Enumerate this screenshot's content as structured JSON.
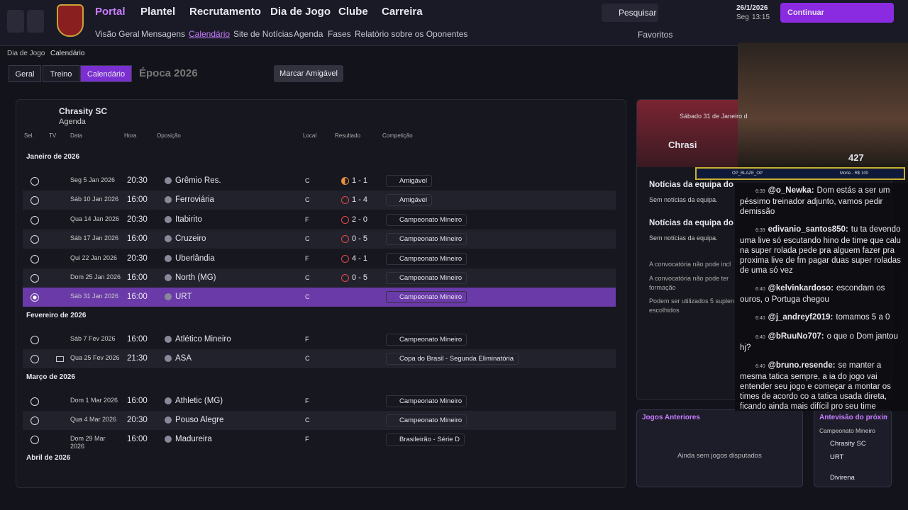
{
  "nav": {
    "tabs": [
      "Portal",
      "Plantel",
      "Recrutamento",
      "Dia de Jogo",
      "Clube",
      "Carreira"
    ],
    "subtabs": [
      "Visão Geral",
      "Mensagens",
      "Calendário",
      "Site de Notícias",
      "Agenda",
      "Fases",
      "Relatório sobre os Oponentes"
    ],
    "search": "Pesquisar",
    "date": "26/1/2026",
    "weekday": "Seg",
    "time": "13:15",
    "continue": "Continuar",
    "favorites": "Favoritos"
  },
  "breadcrumb": [
    "Dia de Jogo",
    "Calendário"
  ],
  "toolbar": {
    "buttons": [
      "Geral",
      "Treino",
      "Calendário"
    ],
    "season": "Época 2026",
    "friendly": "Marcar Amigável"
  },
  "club": {
    "name": "Chrasity SC",
    "subtitle": "Agenda"
  },
  "columns": [
    "Sel.",
    "TV",
    "Data",
    "Hora",
    "Oposição",
    "Local",
    "Resultado",
    "Competição"
  ],
  "groups": [
    {
      "month": "Janeiro de 2026",
      "matches": [
        {
          "date": "Seg 5 Jan 2026",
          "time": "20:30",
          "opponent": "Grêmio Res.",
          "venue": "C",
          "result": "1 - 1",
          "competition": "Amigável"
        },
        {
          "date": "Sáb 10 Jan 2026",
          "time": "16:00",
          "opponent": "Ferroviária",
          "venue": "C",
          "result": "1 - 4",
          "competition": "Amigável"
        },
        {
          "date": "Qua 14 Jan 2026",
          "time": "20:30",
          "opponent": "Itabirito",
          "venue": "F",
          "result": "2 - 0",
          "competition": "Campeonato Mineiro"
        },
        {
          "date": "Sáb 17 Jan 2026",
          "time": "16:00",
          "opponent": "Cruzeiro",
          "venue": "C",
          "result": "0 - 5",
          "competition": "Campeonato Mineiro"
        },
        {
          "date": "Qui 22 Jan 2026",
          "time": "20:30",
          "opponent": "Uberlândia",
          "venue": "F",
          "result": "4 - 1",
          "competition": "Campeonato Mineiro"
        },
        {
          "date": "Dom 25 Jan 2026",
          "time": "16:00",
          "opponent": "North (MG)",
          "venue": "C",
          "result": "0 - 5",
          "competition": "Campeonato Mineiro"
        },
        {
          "date": "Sáb 31 Jan 2026",
          "time": "16:00",
          "opponent": "URT",
          "venue": "C",
          "competition": "Campeonato Mineiro",
          "selected": true
        }
      ]
    },
    {
      "month": "Fevereiro de 2026",
      "matches": [
        {
          "date": "Sáb 7 Fev 2026",
          "time": "16:00",
          "opponent": "Atlético Mineiro",
          "venue": "F",
          "competition": "Campeonato Mineiro"
        },
        {
          "date": "Qua 25 Fev 2026",
          "time": "21:30",
          "opponent": "ASA",
          "venue": "C",
          "competition": "Copa do Brasil - Segunda Eliminatória",
          "tv": true
        }
      ]
    },
    {
      "month": "Março de 2026",
      "matches": [
        {
          "date": "Dom 1 Mar 2026",
          "time": "16:00",
          "opponent": "Athletic (MG)",
          "venue": "F",
          "competition": "Campeonato Mineiro"
        },
        {
          "date": "Qua 4 Mar 2026",
          "time": "20:30",
          "opponent": "Pouso Alegre",
          "venue": "C",
          "competition": "Campeonato Mineiro"
        },
        {
          "date": "Dom 29 Mar 2026",
          "time": "16:00",
          "opponent": "Madureira",
          "venue": "F",
          "competition": "Brasileirão - Série D"
        }
      ]
    },
    {
      "month": "Abril de 2026",
      "matches": []
    }
  ],
  "side": {
    "header_date": "Sábado 31 de Janeiro d",
    "header_team": "Chrasi",
    "news": [
      {
        "title": "Notícias da equipa do",
        "text": "Sem notícias da equipa."
      },
      {
        "title": "Notícias da equipa do",
        "text": "Sem notícias da equipa."
      }
    ],
    "notes": [
      "A convocatória não pode incl",
      "A convocatória não pode ter",
      "formação",
      "Podem ser utilizados 5 suplen",
      "escolhidos"
    ],
    "previous_title": "Jogos Anteriores",
    "previous_text": "Ainda sem jogos disputados",
    "preview_title": "Antevisão do próximo j",
    "preview_competition": "Campeonato Mineiro",
    "preview_teams": [
      "Chrasity SC",
      "URT"
    ],
    "preview_footer": "Divirena"
  },
  "stream": {
    "viewers": "427",
    "banner_left": "OP_BLAZE_OP",
    "banner_right": "Morte - R$ 100",
    "chat": [
      {
        "time": "6:39",
        "user": "@o_Newka:",
        "text": "Dom estás a ser um péssimo treinador adjunto, vamos pedir demissão"
      },
      {
        "time": "6:39",
        "user": "edivanio_santos850:",
        "text": "tu ta devendo uma live só escutando hino de time que calu na super rolada pede pra alguem fazer pra proxima live de fm pagar duas super roladas de uma só vez"
      },
      {
        "time": "6:40",
        "user": "@kelvinkardoso:",
        "text": "escondam os ouros, o Portuga chegou"
      },
      {
        "time": "6:40",
        "user": "@j_andreyf2019:",
        "text": "tomamos 5 a 0"
      },
      {
        "time": "6:40",
        "user": "@bRuuNo707:",
        "text": "o que o Dom jantou hj?"
      },
      {
        "time": "6:40",
        "user": "@bruno.resende:",
        "text": "se manter a mesma tatica sempre, a ia do jogo vai entender seu jogo e começar a montar os times de acordo co a tatica usada direta, ficando ainda mais difícil pro seu time"
      }
    ]
  }
}
